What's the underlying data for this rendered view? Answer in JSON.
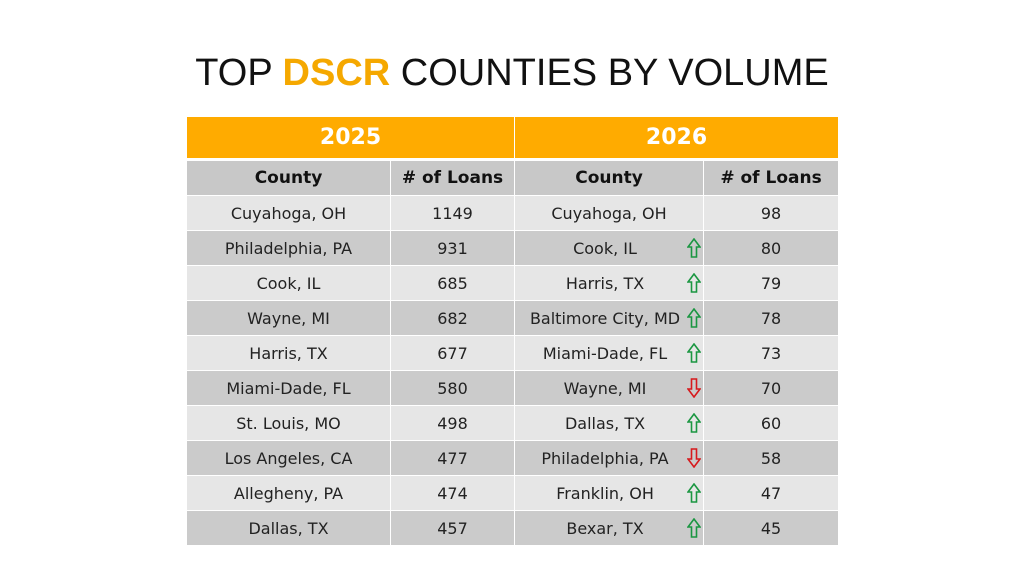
{
  "title": {
    "prefix": "TOP ",
    "accent": "DSCR",
    "suffix": " COUNTIES BY VOLUME"
  },
  "colors": {
    "accent": "#ffab00",
    "up": "#1a9641",
    "down": "#d7191c"
  },
  "table": {
    "years": [
      "2025",
      "2026"
    ],
    "columns": [
      "County",
      "# of Loans",
      "County",
      "# of Loans"
    ],
    "rows": [
      {
        "county_2025": "Cuyahoga, OH",
        "loans_2025": "1149",
        "county_2026": "Cuyahoga, OH",
        "loans_2026": "98",
        "trend": ""
      },
      {
        "county_2025": "Philadelphia, PA",
        "loans_2025": "931",
        "county_2026": "Cook, IL",
        "loans_2026": "80",
        "trend": "up"
      },
      {
        "county_2025": "Cook, IL",
        "loans_2025": "685",
        "county_2026": "Harris, TX",
        "loans_2026": "79",
        "trend": "up"
      },
      {
        "county_2025": "Wayne, MI",
        "loans_2025": "682",
        "county_2026": "Baltimore City, MD",
        "loans_2026": "78",
        "trend": "up"
      },
      {
        "county_2025": "Harris, TX",
        "loans_2025": "677",
        "county_2026": "Miami-Dade, FL",
        "loans_2026": "73",
        "trend": "up"
      },
      {
        "county_2025": "Miami-Dade, FL",
        "loans_2025": "580",
        "county_2026": "Wayne, MI",
        "loans_2026": "70",
        "trend": "down"
      },
      {
        "county_2025": "St. Louis, MO",
        "loans_2025": "498",
        "county_2026": "Dallas, TX",
        "loans_2026": "60",
        "trend": "up"
      },
      {
        "county_2025": "Los Angeles, CA",
        "loans_2025": "477",
        "county_2026": "Philadelphia, PA",
        "loans_2026": "58",
        "trend": "down"
      },
      {
        "county_2025": "Allegheny, PA",
        "loans_2025": "474",
        "county_2026": "Franklin, OH",
        "loans_2026": "47",
        "trend": "up"
      },
      {
        "county_2025": "Dallas, TX",
        "loans_2025": "457",
        "county_2026": "Bexar, TX",
        "loans_2026": "45",
        "trend": "up"
      }
    ]
  }
}
